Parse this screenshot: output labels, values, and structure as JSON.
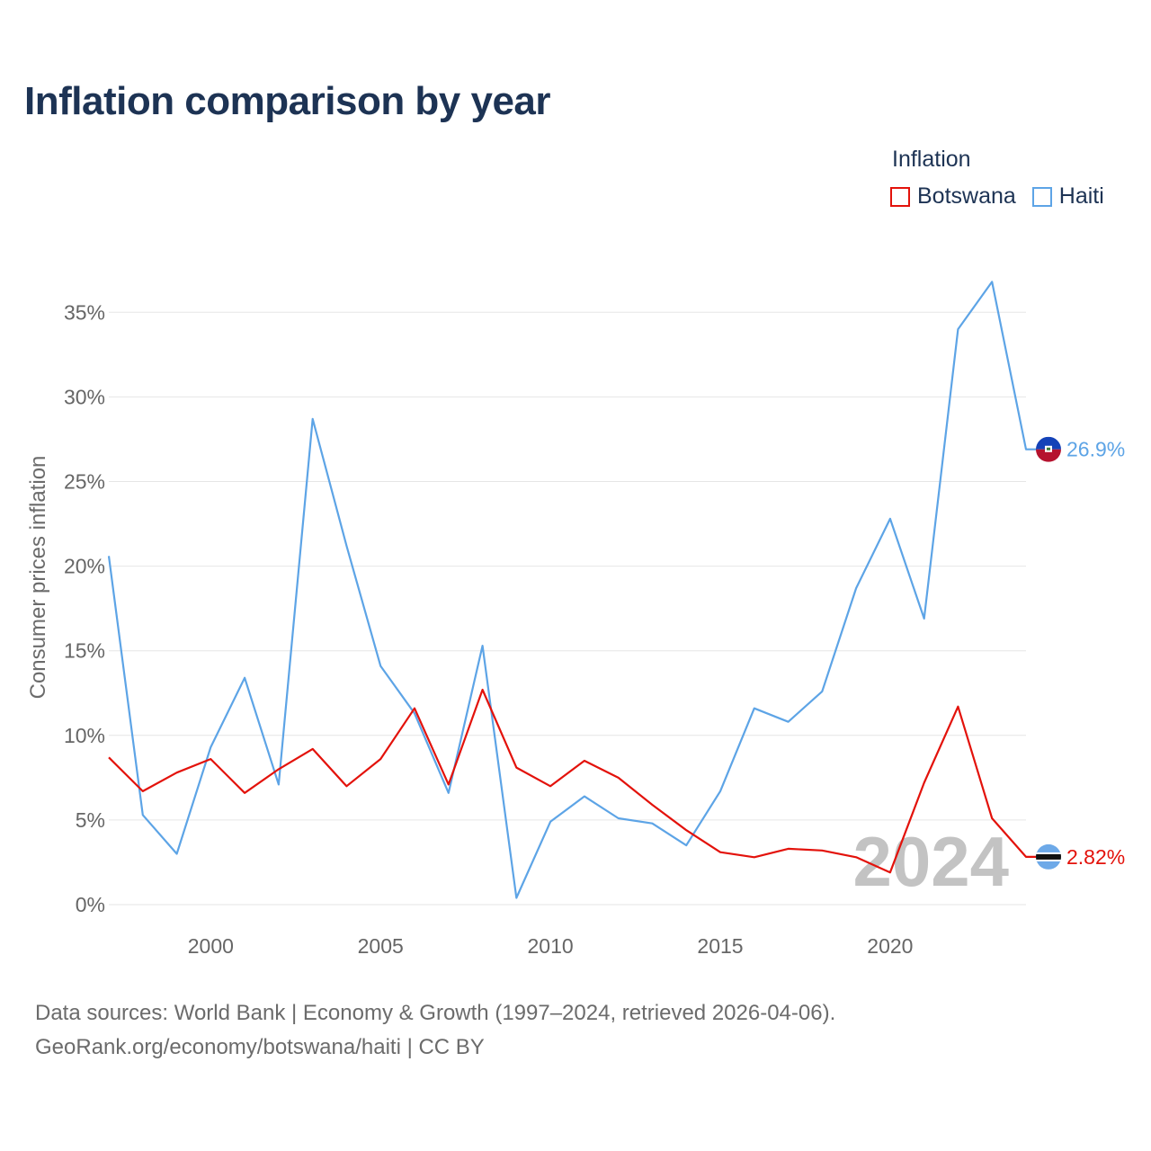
{
  "title": "Inflation comparison by year",
  "legend": {
    "title": "Inflation",
    "items": [
      {
        "label": "Botswana",
        "color": "#e3120b"
      },
      {
        "label": "Haiti",
        "color": "#5da4e6"
      }
    ]
  },
  "sources": {
    "line1": "Data sources: World Bank | Economy & Growth (1997–2024, retrieved 2026-04-06).",
    "line2": "GeoRank.org/economy/botswana/haiti | CC BY"
  },
  "chart_data": {
    "type": "line",
    "ylabel": "Consumer prices inflation",
    "xlabel": "",
    "year_watermark": "2024",
    "x": [
      1997,
      1998,
      1999,
      2000,
      2001,
      2002,
      2003,
      2004,
      2005,
      2006,
      2007,
      2008,
      2009,
      2010,
      2011,
      2012,
      2013,
      2014,
      2015,
      2016,
      2017,
      2018,
      2019,
      2020,
      2021,
      2022,
      2023,
      2024
    ],
    "xlim": [
      1997,
      2024
    ],
    "ylim": [
      0,
      37
    ],
    "x_ticks": [
      2000,
      2005,
      2010,
      2015,
      2020
    ],
    "x_tick_labels": [
      "2000",
      "2005",
      "2010",
      "2015",
      "2020"
    ],
    "y_ticks": [
      0,
      5,
      10,
      15,
      20,
      25,
      30,
      35
    ],
    "y_tick_labels": [
      "0%",
      "5%",
      "10%",
      "15%",
      "20%",
      "25%",
      "30%",
      "35%"
    ],
    "series": [
      {
        "name": "Haiti",
        "color": "#5da4e6",
        "end_label": "26.9%",
        "flag": "haiti",
        "values": [
          20.6,
          5.3,
          3.0,
          9.3,
          13.4,
          7.1,
          28.7,
          21.2,
          14.1,
          11.3,
          6.6,
          15.3,
          0.4,
          4.9,
          6.4,
          5.1,
          4.8,
          3.5,
          6.7,
          11.6,
          10.8,
          12.6,
          18.7,
          22.8,
          16.9,
          34.0,
          36.8,
          26.9
        ]
      },
      {
        "name": "Botswana",
        "color": "#e3120b",
        "end_label": "2.82%",
        "flag": "botswana",
        "values": [
          8.7,
          6.7,
          7.8,
          8.6,
          6.6,
          8.0,
          9.2,
          7.0,
          8.6,
          11.6,
          7.1,
          12.7,
          8.1,
          7.0,
          8.5,
          7.5,
          5.9,
          4.4,
          3.1,
          2.8,
          3.3,
          3.2,
          2.8,
          1.9,
          7.2,
          11.7,
          5.1,
          2.82
        ]
      }
    ]
  }
}
